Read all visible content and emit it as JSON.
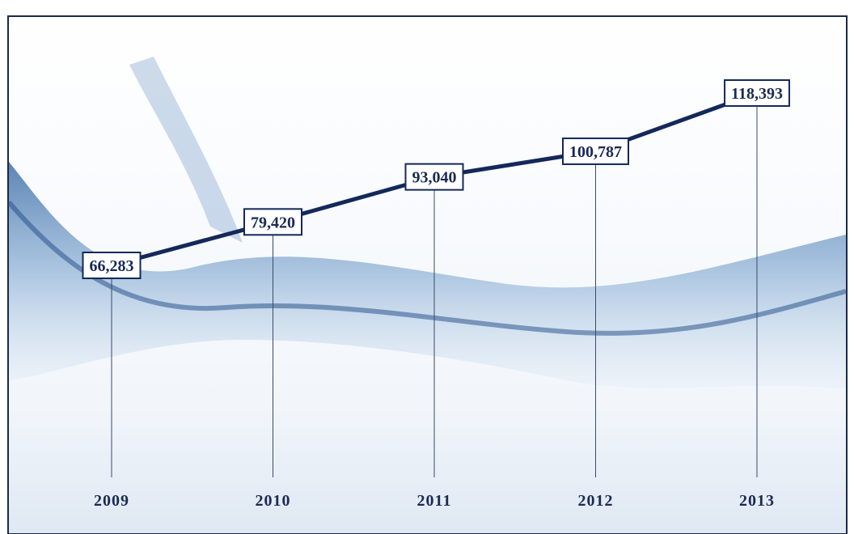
{
  "chart_data": {
    "type": "line",
    "categories": [
      "2009",
      "2010",
      "2011",
      "2012",
      "2013"
    ],
    "values": [
      66283,
      79420,
      93040,
      100787,
      118393
    ],
    "value_labels": [
      "66,283",
      "79,420",
      "93,040",
      "100,787",
      "118,393"
    ],
    "color": "#14285a"
  }
}
